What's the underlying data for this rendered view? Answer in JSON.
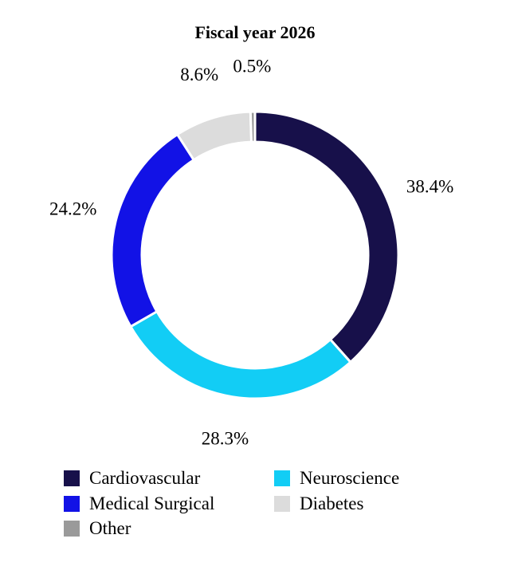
{
  "chart_data": {
    "type": "pie",
    "title": "Fiscal year 2026",
    "categories": [
      "Cardiovascular",
      "Neuroscience",
      "Medical Surgical",
      "Diabetes",
      "Other"
    ],
    "values": [
      38.4,
      28.3,
      24.2,
      8.6,
      0.5
    ],
    "value_labels": [
      "38.4%",
      "28.3%",
      "24.2%",
      "8.6%",
      "0.5%"
    ],
    "colors": [
      "#17104a",
      "#12cdf5",
      "#1212e6",
      "#dcdcdc",
      "#9a9a9a"
    ],
    "donut": true,
    "start": "top",
    "direction": "clockwise",
    "legend": "bottom"
  },
  "legend": {
    "items": [
      {
        "label": "Cardiovascular",
        "color": "#17104a"
      },
      {
        "label": "Neuroscience",
        "color": "#12cdf5"
      },
      {
        "label": "Medical Surgical",
        "color": "#1212e6"
      },
      {
        "label": "Diabetes",
        "color": "#dcdcdc"
      },
      {
        "label": "Other",
        "color": "#9a9a9a"
      }
    ]
  }
}
